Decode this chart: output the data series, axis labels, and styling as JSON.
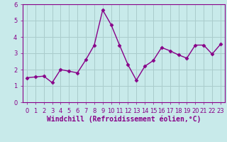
{
  "x": [
    0,
    1,
    2,
    3,
    4,
    5,
    6,
    7,
    8,
    9,
    10,
    11,
    12,
    13,
    14,
    15,
    16,
    17,
    18,
    19,
    20,
    21,
    22,
    23
  ],
  "y": [
    1.5,
    1.55,
    1.6,
    1.2,
    2.0,
    1.9,
    1.8,
    2.6,
    3.5,
    5.65,
    4.75,
    3.5,
    2.3,
    1.35,
    2.2,
    2.55,
    3.35,
    3.15,
    2.9,
    2.7,
    3.5,
    3.5,
    2.95,
    3.55
  ],
  "line_color": "#880088",
  "marker": "D",
  "marker_size": 2.5,
  "background_color": "#c8eaea",
  "grid_color": "#aacccc",
  "xlabel": "Windchill (Refroidissement éolien,°C)",
  "xlabel_fontsize": 7,
  "ylim": [
    0,
    6
  ],
  "xlim": [
    -0.5,
    23.5
  ],
  "yticks": [
    0,
    1,
    2,
    3,
    4,
    5,
    6
  ],
  "xticks": [
    0,
    1,
    2,
    3,
    4,
    5,
    6,
    7,
    8,
    9,
    10,
    11,
    12,
    13,
    14,
    15,
    16,
    17,
    18,
    19,
    20,
    21,
    22,
    23
  ],
  "tick_fontsize": 6,
  "line_width": 1.0,
  "line_color_spine": "#880088",
  "axis_label_color": "#880088"
}
